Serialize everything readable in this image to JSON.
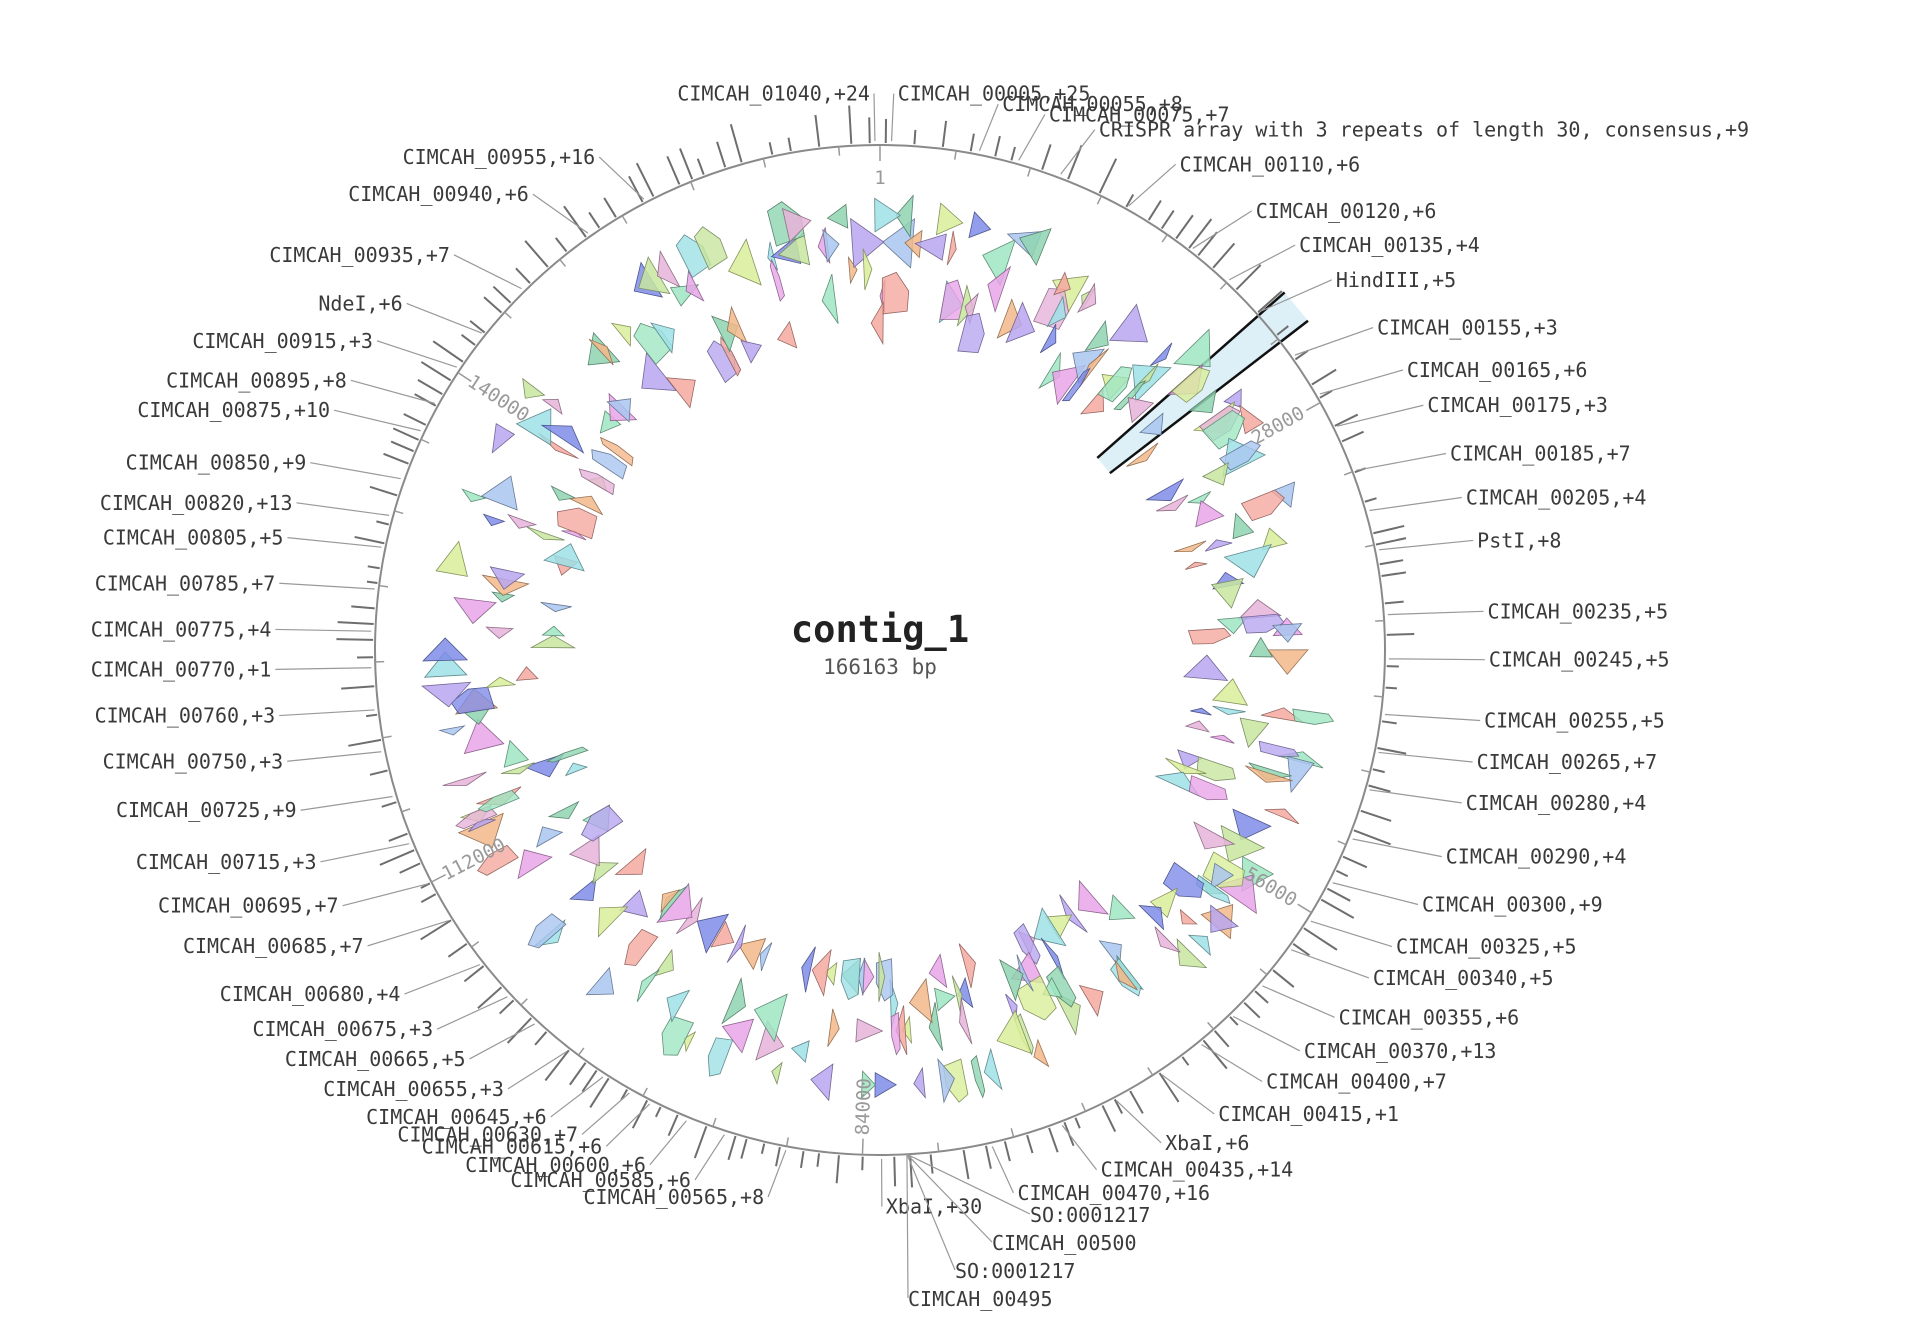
{
  "title": "contig_1",
  "length_label": "166163 bp",
  "sequence_length": 166163,
  "origin_label": "1",
  "ticks": [
    {
      "pos": 28000,
      "label": "28000"
    },
    {
      "pos": 56000,
      "label": "56000"
    },
    {
      "pos": 84000,
      "label": "84000"
    },
    {
      "pos": 112000,
      "label": "112000"
    },
    {
      "pos": 140000,
      "label": "140000"
    }
  ],
  "selection": {
    "start": 22400,
    "end": 24200,
    "color": "#ddf0f8"
  },
  "labels": [
    {
      "text": "CIMCAH_01040,+24",
      "pos": 165900
    },
    {
      "text": "CIMCAH_00005,+25",
      "pos": 600
    },
    {
      "text": "CIMCAH_00055,+8",
      "pos": 5200
    },
    {
      "text": "CIMCAH_00075,+7",
      "pos": 7300
    },
    {
      "text": "CRISPR array with 3 repeats of length 30, consensus,+9",
      "pos": 9600
    },
    {
      "text": "CIMCAH_00110,+6",
      "pos": 13500
    },
    {
      "text": "CIMCAH_00120,+6",
      "pos": 17500
    },
    {
      "text": "CIMCAH_00135,+4",
      "pos": 20000
    },
    {
      "text": "HindIII,+5",
      "pos": 22300
    },
    {
      "text": "CIMCAH_00155,+3",
      "pos": 25200
    },
    {
      "text": "CIMCAH_00165,+6",
      "pos": 27600
    },
    {
      "text": "CIMCAH_00175,+3",
      "pos": 29500
    },
    {
      "text": "CIMCAH_00185,+7",
      "pos": 32000
    },
    {
      "text": "CIMCAH_00205,+4",
      "pos": 34200
    },
    {
      "text": "PstI,+8",
      "pos": 36300
    },
    {
      "text": "CIMCAH_00235,+5",
      "pos": 39700
    },
    {
      "text": "CIMCAH_00245,+5",
      "pos": 42000
    },
    {
      "text": "CIMCAH_00255,+5",
      "pos": 44900
    },
    {
      "text": "CIMCAH_00265,+7",
      "pos": 46900
    },
    {
      "text": "CIMCAH_00280,+4",
      "pos": 48900
    },
    {
      "text": "CIMCAH_00290,+4",
      "pos": 51600
    },
    {
      "text": "CIMCAH_00300,+9",
      "pos": 54100
    },
    {
      "text": "CIMCAH_00325,+5",
      "pos": 56400
    },
    {
      "text": "CIMCAH_00340,+5",
      "pos": 58200
    },
    {
      "text": "CIMCAH_00355,+6",
      "pos": 60600
    },
    {
      "text": "CIMCAH_00370,+13",
      "pos": 62800
    },
    {
      "text": "CIMCAH_00400,+7",
      "pos": 65000
    },
    {
      "text": "CIMCAH_00415,+1",
      "pos": 67600
    },
    {
      "text": "XbaI,+6",
      "pos": 70300
    },
    {
      "text": "CIMCAH_00435,+14",
      "pos": 73400
    },
    {
      "text": "CIMCAH_00470,+16",
      "pos": 77200
    },
    {
      "text": "XbaI,+30",
      "pos": 83000
    },
    {
      "text": "CIMCAH_00565,+8",
      "pos": 88000
    },
    {
      "text": "CIMCAH_00585,+6",
      "pos": 91300
    },
    {
      "text": "CIMCAH_00600,+6",
      "pos": 93400
    },
    {
      "text": "CIMCAH_00615,+6",
      "pos": 95500
    },
    {
      "text": "CIMCAH_00630,+7",
      "pos": 96700
    },
    {
      "text": "CIMCAH_00645,+6",
      "pos": 98300
    },
    {
      "text": "CIMCAH_00655,+3",
      "pos": 100600
    },
    {
      "text": "CIMCAH_00665,+5",
      "pos": 102800
    },
    {
      "text": "CIMCAH_00675,+3",
      "pos": 104800
    },
    {
      "text": "CIMCAH_00680,+4",
      "pos": 107000
    },
    {
      "text": "CIMCAH_00685,+7",
      "pos": 109800
    },
    {
      "text": "CIMCAH_00695,+7",
      "pos": 112000
    },
    {
      "text": "CIMCAH_00715,+3",
      "pos": 114300
    },
    {
      "text": "CIMCAH_00725,+9",
      "pos": 116900
    },
    {
      "text": "CIMCAH_00750,+3",
      "pos": 119300
    },
    {
      "text": "CIMCAH_00760,+3",
      "pos": 121500
    },
    {
      "text": "CIMCAH_00770,+1",
      "pos": 123700
    },
    {
      "text": "CIMCAH_00775,+4",
      "pos": 125600
    },
    {
      "text": "CIMCAH_00785,+7",
      "pos": 127800
    },
    {
      "text": "CIMCAH_00805,+5",
      "pos": 130000
    },
    {
      "text": "CIMCAH_00820,+13",
      "pos": 131700
    },
    {
      "text": "CIMCAH_00850,+9",
      "pos": 133700
    },
    {
      "text": "CIMCAH_00875,+10",
      "pos": 136400
    },
    {
      "text": "CIMCAH_00895,+8",
      "pos": 138000
    },
    {
      "text": "CIMCAH_00915,+3",
      "pos": 140200
    },
    {
      "text": "NdeI,+6",
      "pos": 142400
    },
    {
      "text": "CIMCAH_00935,+7",
      "pos": 145500
    },
    {
      "text": "CIMCAH_00940,+6",
      "pos": 150000
    },
    {
      "text": "CIMCAH_00955,+16",
      "pos": 153400
    }
  ],
  "bottom_labels": [
    {
      "text": "SO:0001217"
    },
    {
      "text": "CIMCAH_00500"
    },
    {
      "text": "SO:0001217"
    },
    {
      "text": "CIMCAH_00495"
    }
  ],
  "palette": [
    "#e8a5e8",
    "#a9c6f0",
    "#8fd4b0",
    "#f2b88a",
    "#b8a6f0",
    "#d9ee9a",
    "#f5a9a0",
    "#9ee0e6",
    "#7f8ce8",
    "#c8e6a0",
    "#e6b3d9",
    "#9fe6c2"
  ]
}
